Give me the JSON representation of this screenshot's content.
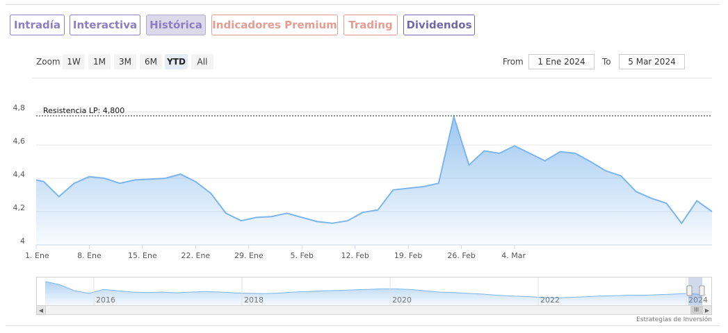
{
  "tabs": [
    {
      "label": "Intradía",
      "style": "purple"
    },
    {
      "label": "Interactiva",
      "style": "purple"
    },
    {
      "label": "Histórica",
      "style": "active"
    },
    {
      "label": "Indicadores Premium",
      "style": "salmon"
    },
    {
      "label": "Trading",
      "style": "salmon"
    },
    {
      "label": "Dividendos",
      "style": "darkpurple"
    }
  ],
  "toolbar": {
    "zoom_label": "Zoom",
    "zoom_buttons": [
      "1W",
      "1M",
      "3M",
      "6M",
      "YTD",
      "All"
    ],
    "zoom_selected": "YTD",
    "from_label": "From",
    "from_value": "1 Ene 2024",
    "to_label": "To",
    "to_value": "5 Mar 2024"
  },
  "colors": {
    "line": "#7cb5ec",
    "area_top": "#7cb5ec",
    "area_bottom": "#ffffff",
    "tab_purple": "#8b7fc2",
    "tab_salmon": "#e59c93"
  },
  "chart_data": {
    "type": "area",
    "x_start": "2024-01-01",
    "x_ticks": [
      "1. Ene",
      "8. Ene",
      "15. Ene",
      "22. Ene",
      "29. Ene",
      "5. Feb",
      "12. Feb",
      "19. Feb",
      "26. Feb",
      "4. Mar"
    ],
    "y_ticks": [
      "4",
      "4,2",
      "4,4",
      "4,6",
      "4,8"
    ],
    "ylim": [
      4.0,
      4.8
    ],
    "grid": true,
    "resistance": {
      "label": "Resistencia LP: 4,800",
      "value": 4.8
    },
    "points": [
      {
        "x": "2024-01-01",
        "y": 4.39
      },
      {
        "x": "2024-01-02",
        "y": 4.38
      },
      {
        "x": "2024-01-04",
        "y": 4.29
      },
      {
        "x": "2024-01-06",
        "y": 4.37
      },
      {
        "x": "2024-01-08",
        "y": 4.41
      },
      {
        "x": "2024-01-10",
        "y": 4.4
      },
      {
        "x": "2024-01-12",
        "y": 4.37
      },
      {
        "x": "2024-01-14",
        "y": 4.39
      },
      {
        "x": "2024-01-16",
        "y": 4.395
      },
      {
        "x": "2024-01-18",
        "y": 4.4
      },
      {
        "x": "2024-01-20",
        "y": 4.425
      },
      {
        "x": "2024-01-22",
        "y": 4.38
      },
      {
        "x": "2024-01-24",
        "y": 4.31
      },
      {
        "x": "2024-01-26",
        "y": 4.19
      },
      {
        "x": "2024-01-28",
        "y": 4.145
      },
      {
        "x": "2024-01-30",
        "y": 4.165
      },
      {
        "x": "2024-02-01",
        "y": 4.17
      },
      {
        "x": "2024-02-03",
        "y": 4.19
      },
      {
        "x": "2024-02-05",
        "y": 4.165
      },
      {
        "x": "2024-02-07",
        "y": 4.14
      },
      {
        "x": "2024-02-09",
        "y": 4.13
      },
      {
        "x": "2024-02-11",
        "y": 4.145
      },
      {
        "x": "2024-02-13",
        "y": 4.195
      },
      {
        "x": "2024-02-15",
        "y": 4.21
      },
      {
        "x": "2024-02-17",
        "y": 4.33
      },
      {
        "x": "2024-02-19",
        "y": 4.34
      },
      {
        "x": "2024-02-21",
        "y": 4.35
      },
      {
        "x": "2024-02-23",
        "y": 4.37
      },
      {
        "x": "2024-02-25",
        "y": 4.77
      },
      {
        "x": "2024-02-27",
        "y": 4.48
      },
      {
        "x": "2024-02-29",
        "y": 4.565
      },
      {
        "x": "2024-03-02",
        "y": 4.55
      },
      {
        "x": "2024-03-04",
        "y": 4.595
      },
      {
        "x": "2024-03-06",
        "y": 4.55
      },
      {
        "x": "2024-03-08",
        "y": 4.505
      },
      {
        "x": "2024-03-10",
        "y": 4.56
      },
      {
        "x": "2024-03-12",
        "y": 4.55
      },
      {
        "x": "2024-03-14",
        "y": 4.5
      },
      {
        "x": "2024-03-16",
        "y": 4.445
      },
      {
        "x": "2024-03-18",
        "y": 4.415
      },
      {
        "x": "2024-03-20",
        "y": 4.32
      },
      {
        "x": "2024-03-22",
        "y": 4.28
      },
      {
        "x": "2024-03-24",
        "y": 4.25
      },
      {
        "x": "2024-03-26",
        "y": 4.13
      },
      {
        "x": "2024-03-28",
        "y": 4.265
      },
      {
        "x": "2024-03-30",
        "y": 4.2
      }
    ]
  },
  "navigator": {
    "year_labels": [
      "2016",
      "2018",
      "2020",
      "2022",
      "2024"
    ],
    "values": [
      0.9,
      0.78,
      0.55,
      0.45,
      0.6,
      0.55,
      0.5,
      0.48,
      0.5,
      0.47,
      0.5,
      0.52,
      0.5,
      0.47,
      0.45,
      0.44,
      0.46,
      0.5,
      0.52,
      0.55,
      0.56,
      0.58,
      0.6,
      0.62,
      0.62,
      0.6,
      0.55,
      0.5,
      0.48,
      0.45,
      0.42,
      0.38,
      0.35,
      0.33,
      0.3,
      0.28,
      0.3,
      0.32,
      0.35,
      0.36,
      0.38,
      0.38,
      0.4,
      0.42,
      0.45,
      0.4
    ]
  },
  "credit": "Estrategias de Inversión"
}
